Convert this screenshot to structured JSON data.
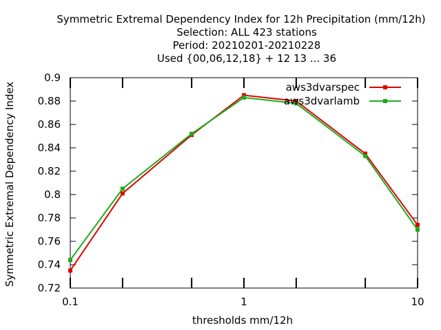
{
  "chart_data": {
    "type": "line",
    "title": [
      "Symmetric Extremal Dependency Index  for 12h Precipitation (mm/12h)",
      "Selection: ALL     423 stations",
      "Period: 20210201-20210228",
      "Used {00,06,12,18} + 12 13 ... 36"
    ],
    "xlabel": "thresholds mm/12h",
    "ylabel": "Symmetric Extremal Dependency Index",
    "xscale": "log",
    "xlim": [
      0.1,
      10
    ],
    "ylim": [
      0.72,
      0.9
    ],
    "x_ticks": [
      {
        "value": 0.1,
        "label": "0.1"
      },
      {
        "value": 1,
        "label": "1"
      },
      {
        "value": 10,
        "label": "10"
      }
    ],
    "x_minor_ticks": [
      0.2,
      0.5,
      2,
      5
    ],
    "y_ticks": [
      {
        "value": 0.72,
        "label": "0.72"
      },
      {
        "value": 0.74,
        "label": "0.74"
      },
      {
        "value": 0.76,
        "label": "0.76"
      },
      {
        "value": 0.78,
        "label": "0.78"
      },
      {
        "value": 0.8,
        "label": "0.8"
      },
      {
        "value": 0.82,
        "label": "0.82"
      },
      {
        "value": 0.84,
        "label": "0.84"
      },
      {
        "value": 0.86,
        "label": "0.86"
      },
      {
        "value": 0.88,
        "label": "0.88"
      },
      {
        "value": 0.9,
        "label": "0.9"
      }
    ],
    "grid": false,
    "legend_position": "top-right",
    "series": [
      {
        "name": "aws3dvarspec",
        "color": "#e00000",
        "x": [
          0.1,
          0.2,
          0.5,
          1,
          2,
          5,
          10
        ],
        "y": [
          0.735,
          0.801,
          0.851,
          0.885,
          0.88,
          0.835,
          0.774
        ]
      },
      {
        "name": "aws3dvarlamb",
        "color": "#1aad1a",
        "x": [
          0.1,
          0.2,
          0.5,
          1,
          2,
          5,
          10
        ],
        "y": [
          0.744,
          0.805,
          0.852,
          0.883,
          0.878,
          0.833,
          0.77
        ]
      }
    ]
  }
}
